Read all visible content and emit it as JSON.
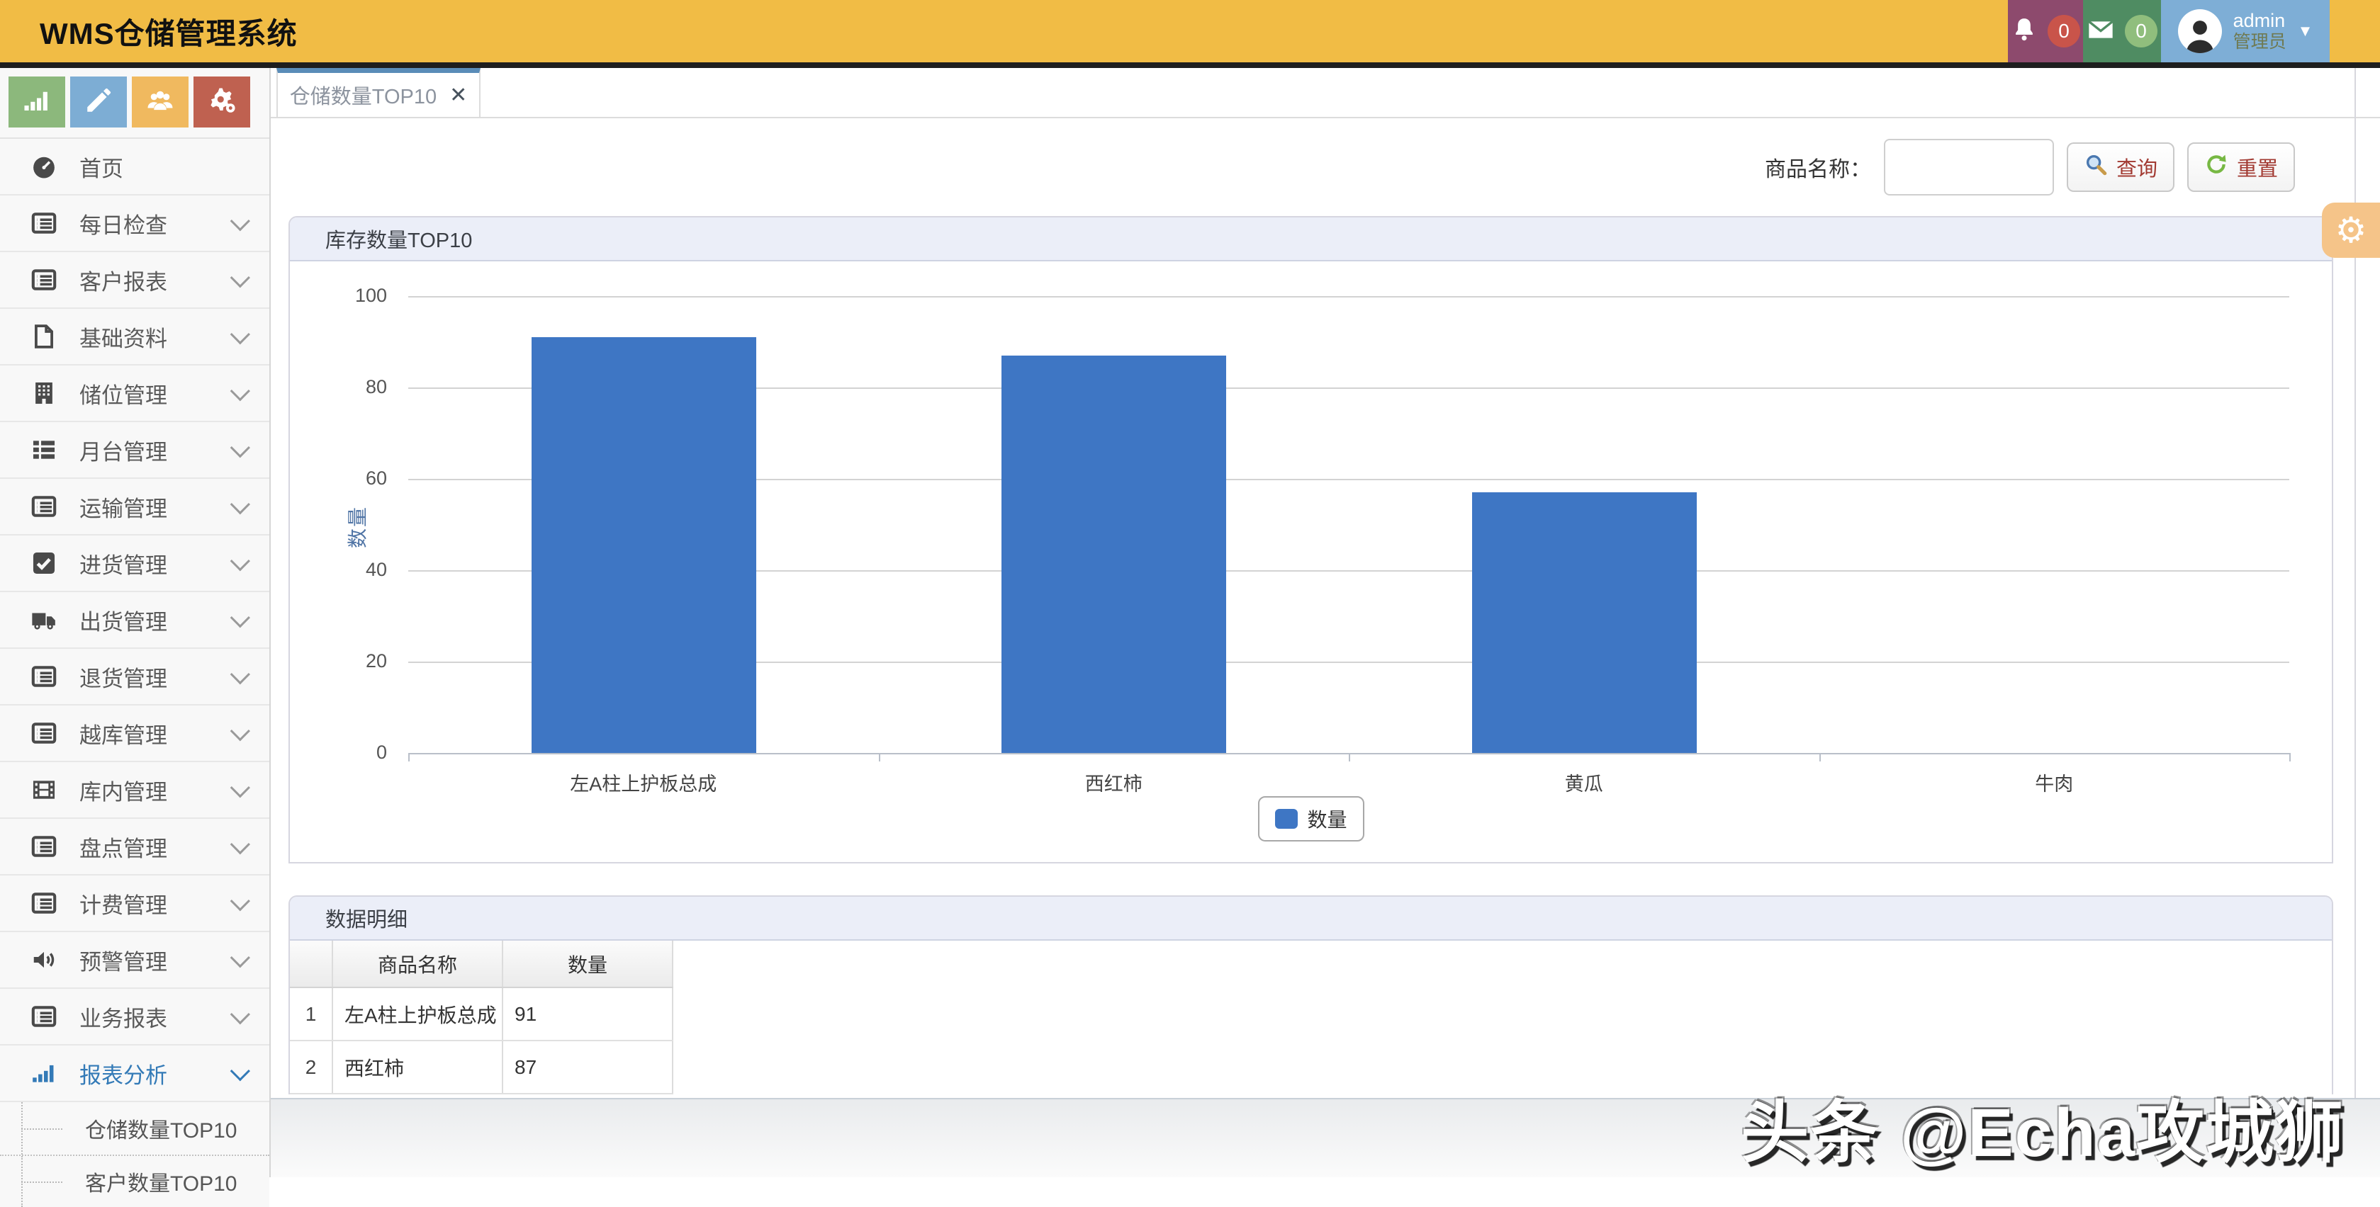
{
  "app": {
    "title": "WMS仓储管理系统"
  },
  "header": {
    "bell_count": "0",
    "mail_count": "0",
    "user": {
      "name": "admin",
      "role": "管理员"
    }
  },
  "toolbar": {
    "buttons": [
      {
        "icon": "chart-bar-icon",
        "color": "#8cb87c"
      },
      {
        "icon": "pencil-icon",
        "color": "#7dadd4"
      },
      {
        "icon": "users-icon",
        "color": "#f0b95f"
      },
      {
        "icon": "gears-icon",
        "color": "#bf6150"
      }
    ]
  },
  "sidebar": {
    "items": [
      {
        "label": "首页",
        "icon": "dashboard-icon",
        "has_children": false,
        "active": false
      },
      {
        "label": "每日检查",
        "icon": "list-icon",
        "has_children": true,
        "active": false
      },
      {
        "label": "客户报表",
        "icon": "list-icon",
        "has_children": true,
        "active": false
      },
      {
        "label": "基础资料",
        "icon": "file-icon",
        "has_children": true,
        "active": false
      },
      {
        "label": "储位管理",
        "icon": "building-icon",
        "has_children": true,
        "active": false
      },
      {
        "label": "月台管理",
        "icon": "th-list-icon",
        "has_children": true,
        "active": false
      },
      {
        "label": "运输管理",
        "icon": "list-icon",
        "has_children": true,
        "active": false
      },
      {
        "label": "进货管理",
        "icon": "check-square-icon",
        "has_children": true,
        "active": false
      },
      {
        "label": "出货管理",
        "icon": "truck-icon",
        "has_children": true,
        "active": false
      },
      {
        "label": "退货管理",
        "icon": "list-icon",
        "has_children": true,
        "active": false
      },
      {
        "label": "越库管理",
        "icon": "list-icon",
        "has_children": true,
        "active": false
      },
      {
        "label": "库内管理",
        "icon": "film-icon",
        "has_children": true,
        "active": false
      },
      {
        "label": "盘点管理",
        "icon": "list-icon",
        "has_children": true,
        "active": false
      },
      {
        "label": "计费管理",
        "icon": "list-icon",
        "has_children": true,
        "active": false
      },
      {
        "label": "预警管理",
        "icon": "volume-icon",
        "has_children": true,
        "active": false
      },
      {
        "label": "业务报表",
        "icon": "list-icon",
        "has_children": true,
        "active": false
      },
      {
        "label": "报表分析",
        "icon": "chart-bar-icon",
        "has_children": true,
        "active": true
      }
    ],
    "subitems": [
      "仓储数量TOP10",
      "客户数量TOP10"
    ]
  },
  "tabs": [
    {
      "label": "仓储数量TOP10",
      "close": "✕"
    }
  ],
  "search": {
    "label": "商品名称：",
    "value": "",
    "query_label": "查询",
    "reset_label": "重置"
  },
  "panels": {
    "chart_title": "库存数量TOP10",
    "table_title": "数据明细"
  },
  "chart_data": {
    "type": "bar",
    "title": "库存数量TOP10",
    "categories": [
      "左A柱上护板总成",
      "西红柿",
      "黄瓜",
      "牛肉"
    ],
    "values": [
      91,
      87,
      57,
      0
    ],
    "series_name": "数量",
    "xlabel": "",
    "ylabel": "数量",
    "ylim": [
      0,
      100
    ],
    "yticks": [
      0,
      20,
      40,
      60,
      80,
      100
    ],
    "grid": true,
    "legend_position": "bottom-center",
    "bar_color": "#3e76c4"
  },
  "table": {
    "columns": [
      "",
      "商品名称",
      "数量"
    ],
    "rows": [
      [
        "1",
        "左A柱上护板总成",
        "91"
      ],
      [
        "2",
        "西红柿",
        "87"
      ]
    ]
  },
  "watermark": "头条 @Echa攻城狮",
  "colors": {
    "header_bg": "#f1bc45",
    "active_link": "#337ab7",
    "bar": "#3e76c4",
    "panel_header_bg": "#ebeef8",
    "tab_top_border": "#5a8cb8",
    "button_text": "#a23a32",
    "gear_flyout_bg": "#f5c489"
  }
}
